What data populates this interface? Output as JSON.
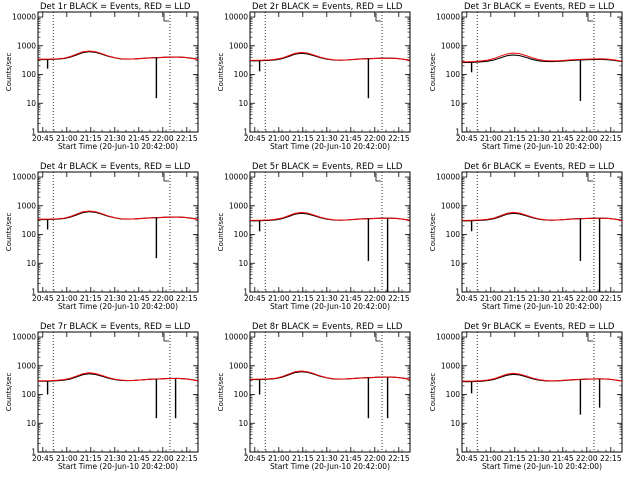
{
  "xaxis": {
    "label": "Start Time (20-Jun-10 20:42:00)",
    "tick_labels": [
      "20:45",
      "21:00",
      "21:15",
      "21:30",
      "21:45",
      "22:00",
      "22:15"
    ],
    "tick_minutes": [
      3,
      18,
      33,
      48,
      63,
      78,
      93
    ],
    "range_minutes": [
      0,
      100
    ],
    "dotted_lines_minutes": [
      9.5,
      82.5
    ]
  },
  "yaxis": {
    "label": "Counts/sec",
    "scale": "log",
    "range": [
      1,
      15000
    ],
    "tick_values": [
      1,
      10,
      100,
      1000,
      10000
    ],
    "tick_labels": [
      "1",
      "10",
      "100",
      "1000",
      "10000"
    ]
  },
  "colors": {
    "events": "#000000",
    "lld": "#ff0000"
  },
  "chart_data": [
    {
      "type": "line",
      "title": "Det 1r BLACK = Events, RED = LLD",
      "series": [
        {
          "values": [
            330,
            330,
            335,
            345,
            360,
            400,
            480,
            580,
            620,
            590,
            510,
            430,
            380,
            350,
            345,
            350,
            360,
            375,
            385,
            390,
            400,
            405,
            405,
            395,
            370,
            340
          ]
        },
        {
          "values": [
            340,
            342,
            345,
            355,
            370,
            420,
            510,
            620,
            660,
            620,
            530,
            440,
            385,
            355,
            348,
            350,
            360,
            372,
            380,
            388,
            398,
            402,
            402,
            392,
            365,
            330
          ]
        }
      ],
      "x": [
        0,
        4,
        8,
        12,
        16,
        20,
        24,
        28,
        32,
        36,
        40,
        44,
        48,
        52,
        56,
        60,
        64,
        68,
        72,
        76,
        80,
        84,
        88,
        92,
        96,
        100
      ],
      "dips": [
        {
          "x": 6,
          "y": 160
        },
        {
          "x": 74,
          "y": 15
        }
      ]
    },
    {
      "type": "line",
      "title": "Det 2r BLACK = Events, RED = LLD",
      "series": [
        {
          "values": [
            300,
            300,
            305,
            312,
            325,
            355,
            420,
            510,
            550,
            520,
            450,
            385,
            340,
            320,
            315,
            320,
            330,
            345,
            355,
            360,
            368,
            372,
            372,
            362,
            340,
            315
          ]
        },
        {
          "values": [
            310,
            312,
            316,
            325,
            340,
            375,
            450,
            545,
            590,
            555,
            475,
            400,
            350,
            326,
            318,
            322,
            332,
            344,
            352,
            358,
            366,
            370,
            370,
            360,
            336,
            305
          ]
        }
      ],
      "x": [
        0,
        4,
        8,
        12,
        16,
        20,
        24,
        28,
        32,
        36,
        40,
        44,
        48,
        52,
        56,
        60,
        64,
        68,
        72,
        76,
        80,
        84,
        88,
        92,
        96,
        100
      ],
      "dips": [
        {
          "x": 6,
          "y": 130
        },
        {
          "x": 74,
          "y": 15
        }
      ]
    },
    {
      "type": "line",
      "title": "Det 3r BLACK = Events, RED = LLD",
      "series": [
        {
          "values": [
            260,
            262,
            268,
            278,
            292,
            320,
            380,
            450,
            480,
            455,
            395,
            335,
            300,
            285,
            282,
            288,
            296,
            308,
            318,
            324,
            330,
            334,
            334,
            324,
            305,
            282
          ]
        },
        {
          "values": [
            275,
            278,
            284,
            298,
            318,
            360,
            440,
            520,
            560,
            530,
            455,
            380,
            330,
            305,
            298,
            302,
            312,
            324,
            334,
            340,
            346,
            350,
            350,
            340,
            318,
            290
          ]
        }
      ],
      "x": [
        0,
        4,
        8,
        12,
        16,
        20,
        24,
        28,
        32,
        36,
        40,
        44,
        48,
        52,
        56,
        60,
        64,
        68,
        72,
        76,
        80,
        84,
        88,
        92,
        96,
        100
      ],
      "dips": [
        {
          "x": 6,
          "y": 120
        },
        {
          "x": 74,
          "y": 12
        }
      ]
    },
    {
      "type": "line",
      "title": "Det 4r BLACK = Events, RED = LLD",
      "series": [
        {
          "values": [
            330,
            330,
            335,
            345,
            360,
            400,
            480,
            580,
            620,
            590,
            510,
            430,
            380,
            350,
            345,
            350,
            360,
            375,
            385,
            390,
            400,
            405,
            405,
            395,
            370,
            340
          ]
        },
        {
          "values": [
            340,
            342,
            345,
            355,
            370,
            420,
            510,
            620,
            660,
            620,
            530,
            440,
            385,
            355,
            348,
            350,
            360,
            372,
            380,
            388,
            398,
            402,
            402,
            392,
            365,
            330
          ]
        }
      ],
      "x": [
        0,
        4,
        8,
        12,
        16,
        20,
        24,
        28,
        32,
        36,
        40,
        44,
        48,
        52,
        56,
        60,
        64,
        68,
        72,
        76,
        80,
        84,
        88,
        92,
        96,
        100
      ],
      "dips": [
        {
          "x": 6,
          "y": 150
        },
        {
          "x": 74,
          "y": 15
        }
      ]
    },
    {
      "type": "line",
      "title": "Det 5r BLACK = Events, RED = LLD",
      "series": [
        {
          "values": [
            300,
            300,
            305,
            312,
            325,
            355,
            420,
            510,
            550,
            520,
            450,
            385,
            340,
            320,
            315,
            320,
            330,
            345,
            355,
            360,
            368,
            372,
            372,
            362,
            340,
            315
          ]
        },
        {
          "values": [
            310,
            312,
            316,
            325,
            340,
            375,
            450,
            545,
            590,
            555,
            475,
            400,
            350,
            326,
            318,
            322,
            332,
            344,
            352,
            358,
            366,
            370,
            370,
            360,
            336,
            305
          ]
        }
      ],
      "x": [
        0,
        4,
        8,
        12,
        16,
        20,
        24,
        28,
        32,
        36,
        40,
        44,
        48,
        52,
        56,
        60,
        64,
        68,
        72,
        76,
        80,
        84,
        88,
        92,
        96,
        100
      ],
      "dips": [
        {
          "x": 6,
          "y": 130
        },
        {
          "x": 74,
          "y": 12
        },
        {
          "x": 86,
          "y": 1
        }
      ]
    },
    {
      "type": "line",
      "title": "Det 6r BLACK = Events, RED = LLD",
      "series": [
        {
          "values": [
            300,
            300,
            305,
            312,
            325,
            355,
            420,
            510,
            550,
            520,
            450,
            385,
            340,
            320,
            315,
            320,
            330,
            345,
            355,
            360,
            368,
            372,
            372,
            362,
            340,
            315
          ]
        },
        {
          "values": [
            310,
            312,
            316,
            325,
            340,
            375,
            450,
            545,
            590,
            555,
            475,
            400,
            350,
            326,
            318,
            322,
            332,
            344,
            352,
            358,
            366,
            370,
            370,
            360,
            336,
            305
          ]
        }
      ],
      "x": [
        0,
        4,
        8,
        12,
        16,
        20,
        24,
        28,
        32,
        36,
        40,
        44,
        48,
        52,
        56,
        60,
        64,
        68,
        72,
        76,
        80,
        84,
        88,
        92,
        96,
        100
      ],
      "dips": [
        {
          "x": 6,
          "y": 130
        },
        {
          "x": 74,
          "y": 12
        },
        {
          "x": 86,
          "y": 1
        }
      ]
    },
    {
      "type": "line",
      "title": "Det 7r BLACK = Events, RED = LLD",
      "series": [
        {
          "values": [
            290,
            290,
            295,
            302,
            315,
            345,
            410,
            490,
            530,
            500,
            435,
            370,
            330,
            310,
            305,
            310,
            320,
            334,
            344,
            350,
            358,
            362,
            362,
            352,
            330,
            305
          ]
        },
        {
          "values": [
            300,
            302,
            306,
            315,
            330,
            365,
            440,
            530,
            570,
            535,
            460,
            388,
            340,
            316,
            308,
            312,
            322,
            334,
            342,
            348,
            356,
            360,
            360,
            350,
            326,
            296
          ]
        }
      ],
      "x": [
        0,
        4,
        8,
        12,
        16,
        20,
        24,
        28,
        32,
        36,
        40,
        44,
        48,
        52,
        56,
        60,
        64,
        68,
        72,
        76,
        80,
        84,
        88,
        92,
        96,
        100
      ],
      "dips": [
        {
          "x": 6,
          "y": 100
        },
        {
          "x": 74,
          "y": 15
        },
        {
          "x": 86,
          "y": 15
        }
      ]
    },
    {
      "type": "line",
      "title": "Det 8r BLACK = Events, RED = LLD",
      "series": [
        {
          "values": [
            330,
            330,
            335,
            345,
            360,
            400,
            480,
            580,
            620,
            590,
            510,
            430,
            380,
            350,
            345,
            350,
            360,
            375,
            385,
            390,
            400,
            405,
            405,
            395,
            370,
            340
          ]
        },
        {
          "values": [
            340,
            342,
            345,
            355,
            370,
            420,
            510,
            620,
            660,
            620,
            530,
            440,
            385,
            355,
            348,
            350,
            360,
            372,
            380,
            388,
            398,
            402,
            402,
            392,
            365,
            330
          ]
        }
      ],
      "x": [
        0,
        4,
        8,
        12,
        16,
        20,
        24,
        28,
        32,
        36,
        40,
        44,
        48,
        52,
        56,
        60,
        64,
        68,
        72,
        76,
        80,
        84,
        88,
        92,
        96,
        100
      ],
      "dips": [
        {
          "x": 6,
          "y": 100
        },
        {
          "x": 74,
          "y": 15
        },
        {
          "x": 86,
          "y": 15
        }
      ]
    },
    {
      "type": "line",
      "title": "Det 9r BLACK = Events, RED = LLD",
      "series": [
        {
          "values": [
            280,
            280,
            285,
            292,
            305,
            335,
            395,
            470,
            505,
            478,
            415,
            355,
            318,
            300,
            296,
            300,
            310,
            322,
            332,
            338,
            346,
            350,
            350,
            340,
            320,
            296
          ]
        },
        {
          "values": [
            290,
            292,
            296,
            305,
            320,
            355,
            425,
            510,
            548,
            515,
            442,
            374,
            330,
            308,
            300,
            304,
            314,
            326,
            334,
            340,
            348,
            352,
            352,
            342,
            318,
            290
          ]
        }
      ],
      "x": [
        0,
        4,
        8,
        12,
        16,
        20,
        24,
        28,
        32,
        36,
        40,
        44,
        48,
        52,
        56,
        60,
        64,
        68,
        72,
        76,
        80,
        84,
        88,
        92,
        96,
        100
      ],
      "dips": [
        {
          "x": 6,
          "y": 110
        },
        {
          "x": 74,
          "y": 20
        },
        {
          "x": 86,
          "y": 35
        }
      ]
    }
  ]
}
